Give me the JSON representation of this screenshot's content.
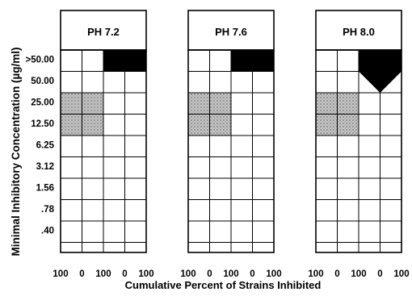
{
  "chart_data": {
    "type": "heatmap",
    "ylabel": "Minimal Inhibitory Concentration (µg/ml)",
    "xlabel": "Cumulative Percent of Strains Inhibited",
    "y_ticks": [
      ">50.00",
      "50.00",
      "25.00",
      "12.50",
      "6.25",
      "3.12",
      "1.56",
      ".78",
      ".40"
    ],
    "x_ticks": [
      "100",
      "0",
      "100",
      "0",
      "100"
    ],
    "grid": true,
    "panels": [
      {
        "title": "PH 7.2",
        "solid_block": {
          "concentration": ">50.00",
          "columns": [
            2,
            4
          ]
        },
        "shaded_block": {
          "concentrations": [
            "25.00",
            "12.50"
          ],
          "columns": [
            0,
            2
          ]
        }
      },
      {
        "title": "PH 7.6",
        "solid_block": {
          "concentration": ">50.00",
          "columns": [
            2,
            4
          ]
        },
        "shaded_block": {
          "concentrations": [
            "25.00",
            "12.50"
          ],
          "columns": [
            0,
            2
          ]
        }
      },
      {
        "title": "PH 8.0",
        "solid_block": {
          "concentration": ">50.00",
          "columns": [
            2,
            4
          ],
          "pointed_tip_to": "50.00"
        },
        "shaded_block": {
          "concentrations": [
            "25.00",
            "12.50"
          ],
          "columns": [
            0,
            2
          ]
        }
      }
    ]
  }
}
